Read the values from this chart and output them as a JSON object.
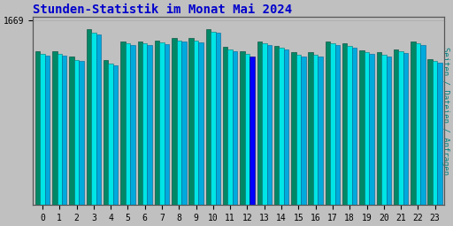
{
  "title": "Stunden-Statistik im Monat Mai 2024",
  "title_color": "#0000cc",
  "title_fontsize": 10,
  "ylabel": "Seiten / Dateien / Anfragen",
  "ylabel_color": "#008080",
  "ylabel_fontsize": 6.5,
  "background_color": "#c0c0c0",
  "plot_bg_color": "#c0c0c0",
  "hours": [
    0,
    1,
    2,
    3,
    4,
    5,
    6,
    7,
    8,
    9,
    10,
    11,
    12,
    13,
    14,
    15,
    16,
    17,
    18,
    19,
    20,
    21,
    22,
    23
  ],
  "seiten": [
    1390,
    1390,
    1340,
    1590,
    1310,
    1480,
    1480,
    1490,
    1510,
    1510,
    1590,
    1430,
    1390,
    1480,
    1440,
    1380,
    1380,
    1480,
    1460,
    1400,
    1380,
    1410,
    1480,
    1320
  ],
  "dateien": [
    1370,
    1370,
    1310,
    1560,
    1280,
    1460,
    1465,
    1470,
    1490,
    1485,
    1570,
    1410,
    1370,
    1460,
    1420,
    1360,
    1360,
    1460,
    1440,
    1385,
    1360,
    1390,
    1460,
    1300
  ],
  "anfragen": [
    1350,
    1355,
    1300,
    1540,
    1260,
    1445,
    1450,
    1455,
    1475,
    1470,
    1555,
    1395,
    1340,
    1445,
    1405,
    1345,
    1345,
    1445,
    1425,
    1370,
    1345,
    1375,
    1445,
    1285
  ],
  "bar1_color": "#008866",
  "bar2_color": "#00e5e5",
  "bar3_color": "#00aadd",
  "bar3_color_12": "#0000ff",
  "ylim_max": 1700,
  "ytick_val": 1669,
  "grid_color": "#aaaaaa",
  "border_color": "#555555"
}
